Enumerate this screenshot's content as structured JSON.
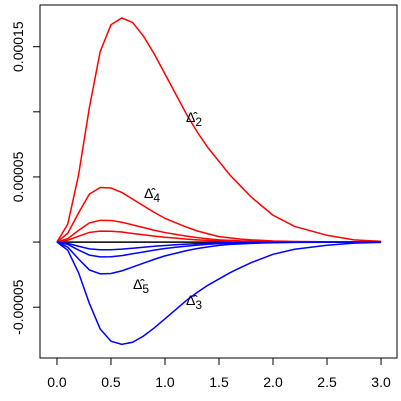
{
  "chart_data": {
    "type": "line",
    "x": [
      0,
      0.1,
      0.2,
      0.3,
      0.4,
      0.5,
      0.6,
      0.7,
      0.8,
      0.9,
      1.0,
      1.1,
      1.2,
      1.3,
      1.4,
      1.5,
      1.6,
      1.7,
      1.8,
      1.9,
      2.0,
      2.2,
      2.5,
      2.75,
      3.0
    ],
    "series": [
      {
        "color": "#000000",
        "values": [
          0,
          0,
          0,
          0,
          0,
          0,
          0,
          0,
          0,
          0,
          0,
          0,
          0,
          0,
          0,
          0,
          0,
          0,
          0,
          0,
          0,
          0,
          0,
          0,
          0
        ]
      },
      {
        "label": "Δ̂",
        "label_sub": "2",
        "color": "#ff0000",
        "values": [
          0,
          1.38e-05,
          5.16e-05,
          0.0001032,
          0.0001462,
          0.0001668,
          0.000172,
          0.0001686,
          0.0001582,
          0.0001445,
          0.000129,
          0.0001135,
          9.8e-05,
          8.43e-05,
          7.22e-05,
          6.19e-05,
          5.16e-05,
          4.3e-05,
          3.44e-05,
          2.75e-05,
          2.06e-05,
          1.2e-05,
          5.2e-06,
          1.7e-06,
          5e-07
        ]
      },
      {
        "label": "Δ̂",
        "label_sub": "3",
        "color": "#0000ff",
        "values": [
          0,
          -6.3e-06,
          -2.36e-05,
          -4.71e-05,
          -6.67e-05,
          -7.61e-05,
          -7.85e-05,
          -7.69e-05,
          -7.22e-05,
          -6.59e-05,
          -5.89e-05,
          -5.18e-05,
          -4.47e-05,
          -3.85e-05,
          -3.3e-05,
          -2.83e-05,
          -2.36e-05,
          -1.96e-05,
          -1.57e-05,
          -1.26e-05,
          -9.4e-06,
          -5.5e-06,
          -2.4e-06,
          -8e-07,
          -2e-07
        ]
      },
      {
        "label": "Δ̂",
        "label_sub": "4",
        "color": "#ff0000",
        "values": [
          0,
          6.8e-06,
          2.24e-05,
          3.68e-05,
          4.19e-05,
          4.15e-05,
          3.81e-05,
          3.3e-05,
          2.79e-05,
          2.28e-05,
          1.82e-05,
          1.48e-05,
          1.14e-05,
          8.5e-06,
          6.3e-06,
          4.2e-06,
          3.2e-06,
          2.3e-06,
          1.7e-06,
          1.3e-06,
          8e-07,
          4e-07,
          2e-07,
          1e-07,
          4e-08
        ]
      },
      {
        "label": "Δ̂",
        "label_sub": "5",
        "color": "#0000ff",
        "values": [
          0,
          -3.9e-06,
          -1.3e-05,
          -2.14e-05,
          -2.44e-05,
          -2.41e-05,
          -2.21e-05,
          -1.92e-05,
          -1.62e-05,
          -1.33e-05,
          -1.06e-05,
          -8.6e-06,
          -6.6e-06,
          -4.9e-06,
          -3.7e-06,
          -2.5e-06,
          -1.8e-06,
          -1.4e-06,
          -1e-06,
          -7e-07,
          -5e-07,
          -2e-07,
          -1e-07,
          0,
          0
        ]
      },
      {
        "color": "#ff0000",
        "values": [
          0,
          2.7e-06,
          9e-06,
          1.47e-05,
          1.67e-05,
          1.66e-05,
          1.52e-05,
          1.32e-05,
          1.12e-05,
          9.1e-06,
          7.3e-06,
          5.9e-06,
          4.6e-06,
          3.4e-06,
          2.5e-06,
          1.7e-06,
          1.3e-06,
          9e-07,
          7e-07,
          5e-07,
          3e-07,
          2e-07,
          1e-07,
          0,
          0
        ]
      },
      {
        "color": "#ff0000",
        "values": [
          0,
          1.4e-06,
          4.5e-06,
          7.4e-06,
          8.4e-06,
          8.3e-06,
          7.7e-06,
          6.6e-06,
          5.6e-06,
          4.6e-06,
          3.7e-06,
          3e-06,
          2.3e-06,
          1.7e-06,
          1.3e-06,
          9e-07,
          6e-07,
          5e-07,
          3e-07,
          3e-07,
          2e-07,
          1e-07,
          0,
          0,
          0
        ]
      },
      {
        "color": "#0000ff",
        "values": [
          0,
          -1.8e-06,
          -6.1e-06,
          -1e-05,
          -1.14e-05,
          -1.13e-05,
          -1.04e-05,
          -9e-06,
          -7.6e-06,
          -6.2e-06,
          -4.9e-06,
          -4e-06,
          -3.1e-06,
          -2.3e-06,
          -1.7e-06,
          -1.2e-06,
          -9e-07,
          -6e-07,
          -5e-07,
          -3e-07,
          -2e-07,
          -1e-07,
          0,
          0,
          0
        ]
      },
      {
        "color": "#0000ff",
        "values": [
          0,
          -1e-06,
          -3.2e-06,
          -5.2e-06,
          -5.9e-06,
          -5.9e-06,
          -5.4e-06,
          -4.7e-06,
          -4e-06,
          -3.2e-06,
          -2.6e-06,
          -2.1e-06,
          -1.6e-06,
          -1.2e-06,
          -9e-07,
          -6e-07,
          -5e-07,
          -3e-07,
          -2e-07,
          -2e-07,
          -1e-07,
          -1e-07,
          0,
          0,
          0
        ]
      }
    ],
    "xlim": [
      -0.12,
      3.12
    ],
    "xticks": [
      {
        "value": 0,
        "label": "0.0"
      },
      0.5,
      {
        "value": 1,
        "label": "1.0"
      },
      1.5,
      {
        "value": 2,
        "label": "2.0"
      },
      2.5,
      {
        "value": 3,
        "label": "3.0"
      }
    ],
    "ylim": [
      -8.9e-05,
      0.000182
    ],
    "yticks": [
      -5e-05,
      {
        "value": 0,
        "label": null
      },
      5e-05,
      {
        "value": 0.0001,
        "label": null
      },
      0.00015
    ],
    "grid": false
  }
}
